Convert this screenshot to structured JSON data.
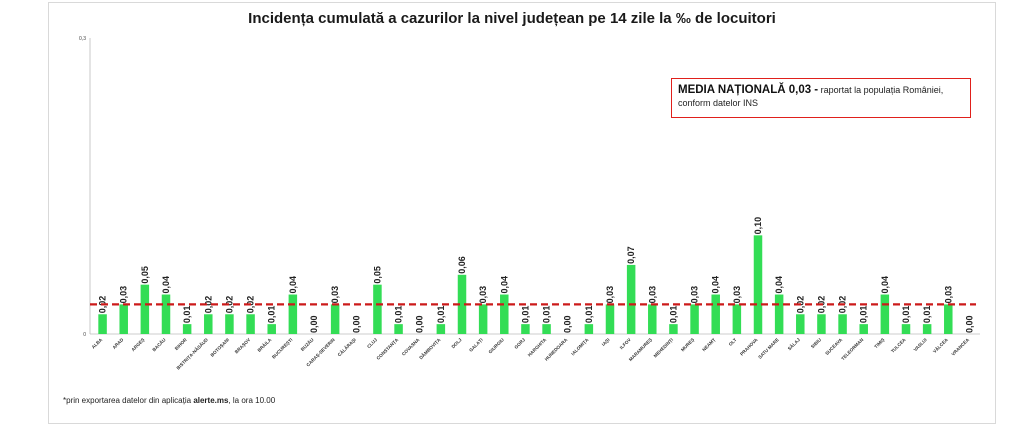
{
  "chart_data": {
    "type": "bar",
    "title": "Incidența cumulată a cazurilor la nivel județean pe 14 zile la ‰ de locuitori",
    "ylim": [
      0,
      0.3
    ],
    "yticks": [
      "0",
      "0,3"
    ],
    "grid": false,
    "categories": [
      "ALBA",
      "ARAD",
      "ARGEȘ",
      "BACĂU",
      "BIHOR",
      "BISTRIȚA-NĂSĂUD",
      "BOTOȘANI",
      "BRAȘOV",
      "BRĂILA",
      "BUCUREȘTI",
      "BUZĂU",
      "CARAȘ-SEVERIN",
      "CĂLĂRAȘI",
      "CLUJ",
      "CONSTANȚA",
      "COVASNA",
      "DÂMBOVIȚA",
      "DOLJ",
      "GALAȚI",
      "GIURGIU",
      "GORJ",
      "HARGHITA",
      "HUNEDOARA",
      "IALOMIȚA",
      "IAȘI",
      "ILFOV",
      "MARAMUREȘ",
      "MEHEDINȚI",
      "MUREȘ",
      "NEAMȚ",
      "OLT",
      "PRAHOVA",
      "SATU MARE",
      "SĂLAJ",
      "SIBIU",
      "SUCEAVA",
      "TELEORMAN",
      "TIMIȘ",
      "TULCEA",
      "VASLUI",
      "VÂLCEA",
      "VRANCEA"
    ],
    "values": [
      0.02,
      0.03,
      0.05,
      0.04,
      0.01,
      0.02,
      0.02,
      0.02,
      0.01,
      0.04,
      0.0,
      0.03,
      0.0,
      0.05,
      0.01,
      0.0,
      0.01,
      0.06,
      0.03,
      0.04,
      0.01,
      0.01,
      0.0,
      0.01,
      0.03,
      0.07,
      0.03,
      0.01,
      0.03,
      0.04,
      0.03,
      0.1,
      0.04,
      0.02,
      0.02,
      0.02,
      0.01,
      0.04,
      0.01,
      0.01,
      0.03,
      0.0
    ],
    "labels": [
      "0,02",
      "0,03",
      "0,05",
      "0,04",
      "0,01",
      "0,02",
      "0,02",
      "0,02",
      "0,01",
      "0,04",
      "0,00",
      "0,03",
      "0,00",
      "0,05",
      "0,01",
      "0,00",
      "0,01",
      "0,06",
      "0,03",
      "0,04",
      "0,01",
      "0,01",
      "0,00",
      "0,01",
      "0,03",
      "0,07",
      "0,03",
      "0,01",
      "0,03",
      "0,04",
      "0,03",
      "0,10",
      "0,04",
      "0,02",
      "0,02",
      "0,02",
      "0,01",
      "0,04",
      "0,01",
      "0,01",
      "0,03",
      "0,00"
    ],
    "national_average": 0.03,
    "bar_color": "#33dd55",
    "avg_line_color": "#cc1a1a"
  },
  "legend": {
    "bold_text": "MEDIA NAȚIONALĂ  0,03 -",
    "rest_text": " raportat la populația României,",
    "line2": "conform datelor INS"
  },
  "footnote": {
    "prefix": "*prin exportarea datelor din aplicația ",
    "app": "alerte.ms",
    "suffix": ", la ora 10.00"
  }
}
